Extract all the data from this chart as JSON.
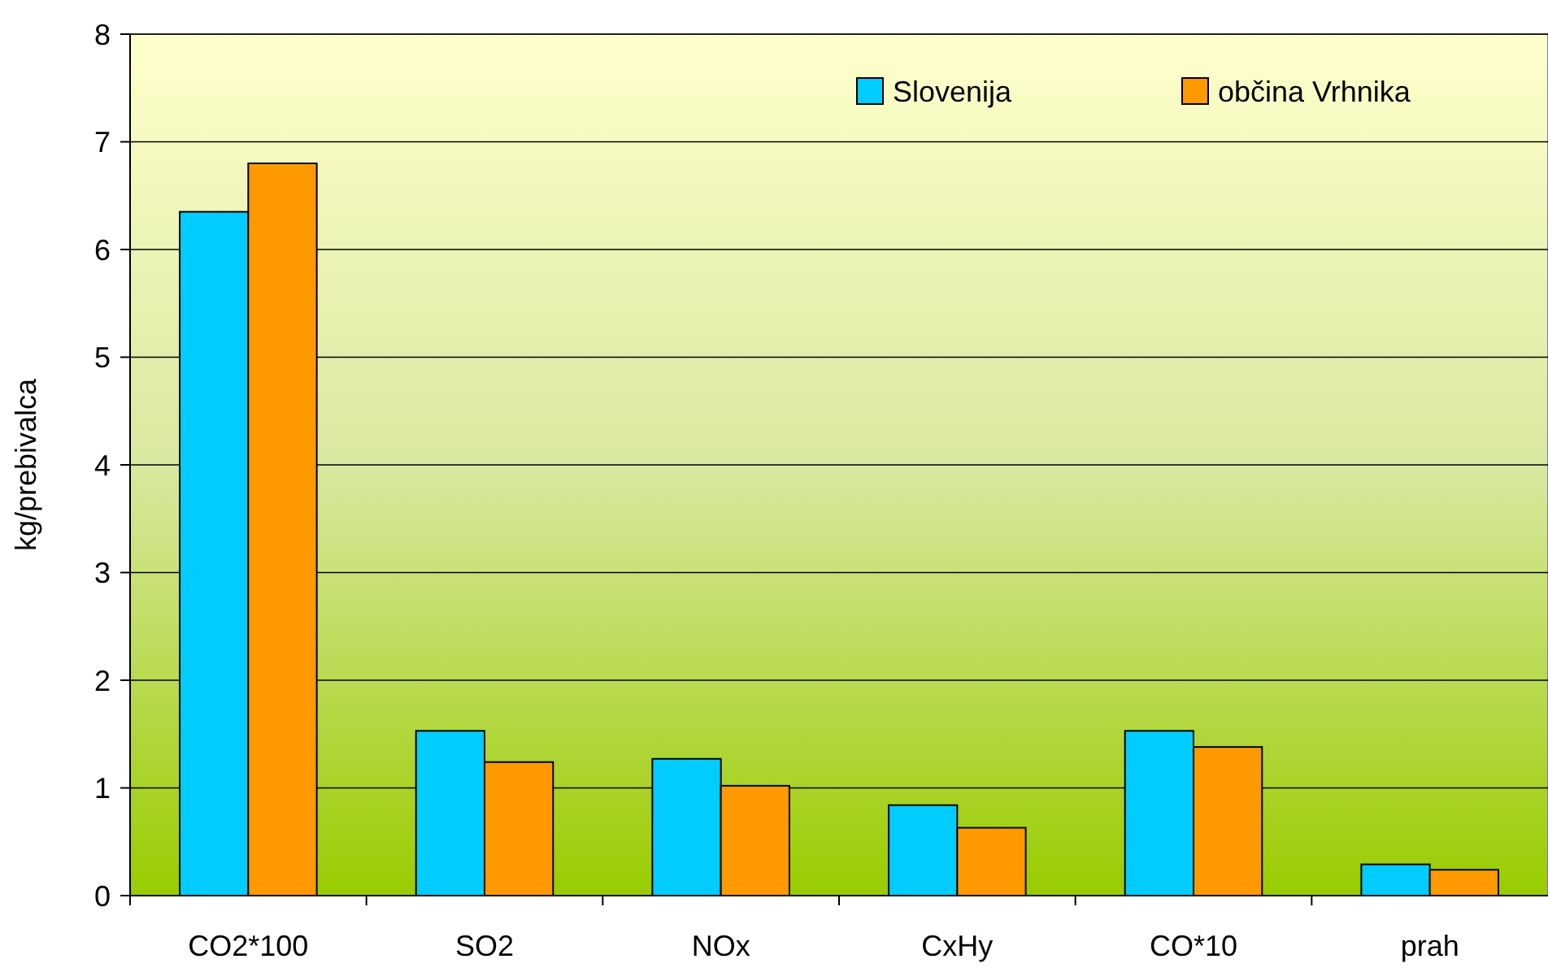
{
  "chart_data": {
    "type": "bar",
    "ylabel": "kg/prebivalca",
    "categories": [
      "CO2*100",
      "SO2",
      "NOx",
      "CxHy",
      "CO*10",
      "prah"
    ],
    "series": [
      {
        "name": "Slovenija",
        "color": "#00ccff",
        "values": [
          6.35,
          1.53,
          1.27,
          0.84,
          1.53,
          0.29
        ]
      },
      {
        "name": "občina Vrhnika",
        "color": "#ff9900",
        "values": [
          6.8,
          1.24,
          1.02,
          0.63,
          1.38,
          0.24
        ]
      }
    ],
    "ylim": [
      0,
      8
    ],
    "yticks": [
      0,
      1,
      2,
      3,
      4,
      5,
      6,
      7,
      8
    ],
    "grid": "y",
    "legend": "top right"
  }
}
